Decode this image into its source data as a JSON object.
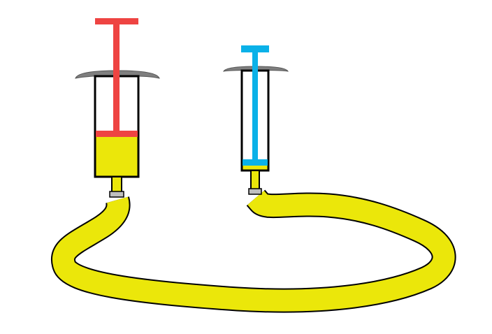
{
  "colors": {
    "background": "#ffffff",
    "fluid": "#ebe70a",
    "outline": "#000000",
    "large_plunger": "#ee4442",
    "small_plunger": "#0ab1e8",
    "flange": "#7f7f7f",
    "connector": "#bfbfbf"
  },
  "large_syringe": {
    "plunger_color_name": "red",
    "fluid_fill_fraction": 0.48
  },
  "small_syringe": {
    "plunger_color_name": "blue",
    "fluid_fill_fraction": 0.08
  },
  "icons": [
    "large-syringe-icon",
    "small-syringe-icon",
    "tube-icon"
  ]
}
